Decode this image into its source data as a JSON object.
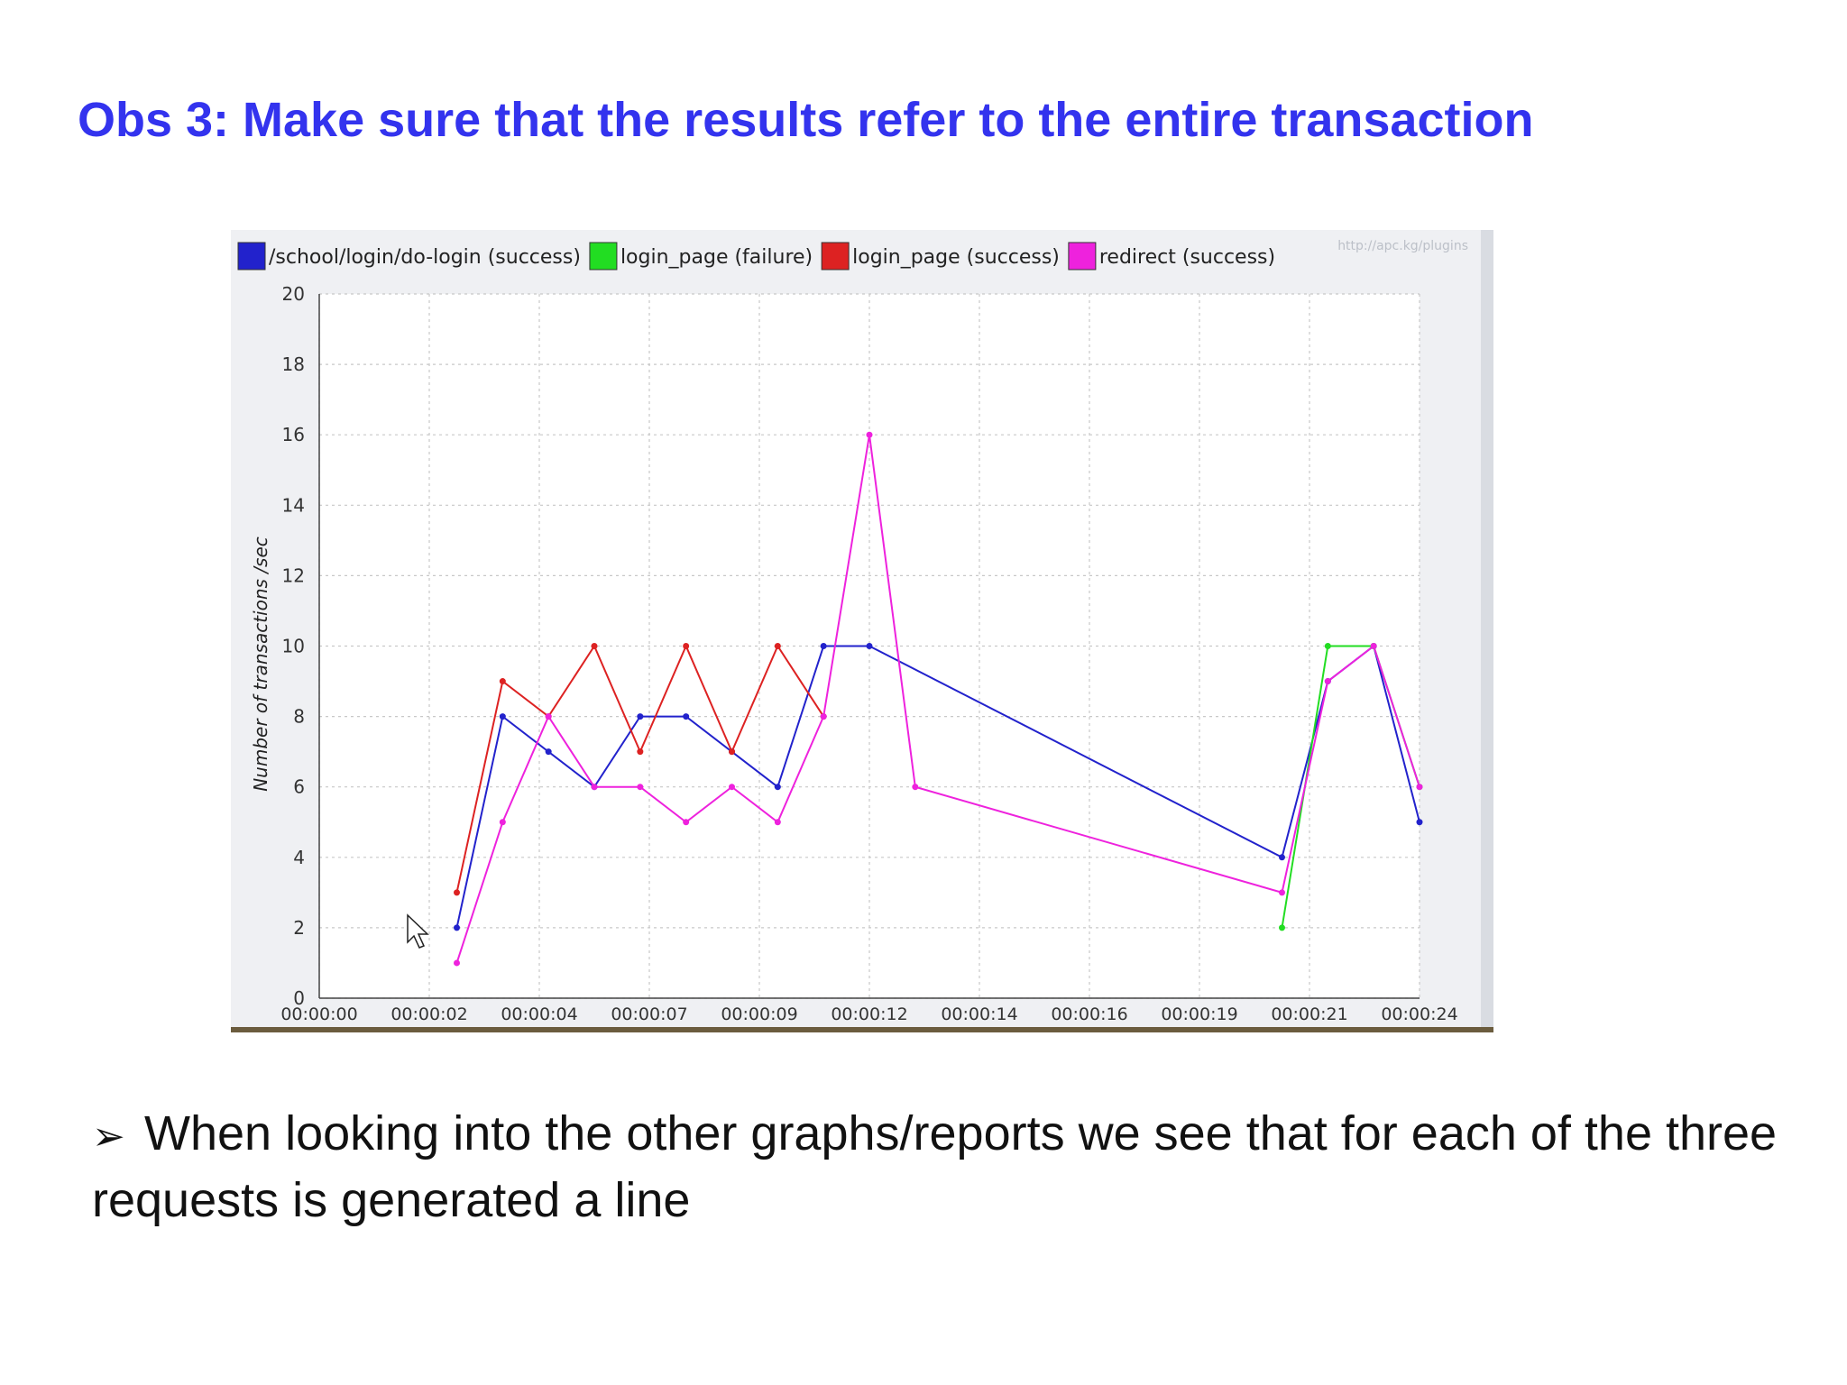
{
  "slide": {
    "title": "Obs 3: Make sure that the results refer to the entire transaction",
    "bullet_glyph": "➢",
    "body": "When looking into the other graphs/reports we see that for each of the three requests is generated a line"
  },
  "chart_data": {
    "type": "line",
    "ylabel": "Number of transactions /sec",
    "watermark": "http://apc.kg/plugins",
    "ylim": [
      0,
      20
    ],
    "yticks": [
      0,
      2,
      4,
      6,
      8,
      10,
      12,
      14,
      16,
      18,
      20
    ],
    "xlim": [
      0,
      24
    ],
    "xticks": [
      0,
      2.4,
      4.8,
      7.2,
      9.6,
      12,
      14.4,
      16.8,
      19.2,
      21.6,
      24
    ],
    "xtick_labels": [
      "00:00:00",
      "00:00:02",
      "00:00:04",
      "00:00:07",
      "00:00:09",
      "00:00:12",
      "00:00:14",
      "00:00:16",
      "00:00:19",
      "00:00:21",
      "00:00:24"
    ],
    "grid": true,
    "legend_position": "top",
    "series": [
      {
        "name": "/school/login/do-login (success)",
        "color": "#2222cc",
        "points": [
          [
            3,
            2
          ],
          [
            4,
            8
          ],
          [
            5,
            7
          ],
          [
            6,
            6
          ],
          [
            7,
            8
          ],
          [
            8,
            8
          ],
          [
            9,
            7
          ],
          [
            10,
            6
          ],
          [
            11,
            10
          ],
          [
            12,
            10
          ],
          [
            21,
            4
          ],
          [
            22,
            9
          ],
          [
            23,
            10
          ],
          [
            24,
            5
          ]
        ]
      },
      {
        "name": "login_page (failure)",
        "color": "#22dd22",
        "points": [
          [
            21,
            2
          ],
          [
            22,
            10
          ],
          [
            23,
            10
          ],
          [
            24,
            6
          ]
        ]
      },
      {
        "name": "login_page (success)",
        "color": "#dd2222",
        "points": [
          [
            3,
            3
          ],
          [
            4,
            9
          ],
          [
            5,
            8
          ],
          [
            6,
            10
          ],
          [
            7,
            7
          ],
          [
            8,
            10
          ],
          [
            9,
            7
          ],
          [
            10,
            10
          ],
          [
            11,
            8
          ]
        ]
      },
      {
        "name": "redirect (success)",
        "color": "#ee22dd",
        "points": [
          [
            3,
            1
          ],
          [
            4,
            5
          ],
          [
            5,
            8
          ],
          [
            6,
            6
          ],
          [
            7,
            6
          ],
          [
            8,
            5
          ],
          [
            9,
            6
          ],
          [
            10,
            5
          ],
          [
            11,
            8
          ],
          [
            12,
            16
          ],
          [
            13,
            6
          ],
          [
            21,
            3
          ],
          [
            22,
            9
          ],
          [
            23,
            10
          ],
          [
            24,
            6
          ]
        ]
      }
    ]
  }
}
